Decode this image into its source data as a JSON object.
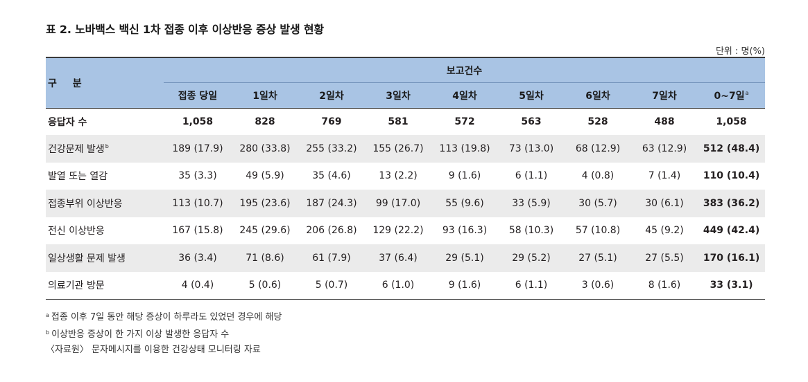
{
  "title": "표 2. 노바백스 백신 1차 접종 이후 이상반응 증상 발생 현황",
  "unit": "단위 : 명(%)",
  "header": {
    "corner": "구 분",
    "group": "보고건수",
    "columns": [
      "접종 당일",
      "1일차",
      "2일차",
      "3일차",
      "4일차",
      "5일차",
      "6일차",
      "7일차",
      "0~7일"
    ],
    "last_column_sup": "a"
  },
  "rows": [
    {
      "label": "응답자 수",
      "sup": "",
      "cells": [
        "1,058",
        "828",
        "769",
        "581",
        "572",
        "563",
        "528",
        "488",
        "1,058"
      ]
    },
    {
      "label": "건강문제 발생",
      "sup": "b",
      "cells": [
        "189 (17.9)",
        "280 (33.8)",
        "255 (33.2)",
        "155 (26.7)",
        "113 (19.8)",
        "73 (13.0)",
        "68 (12.9)",
        "63 (12.9)",
        "512 (48.4)"
      ]
    },
    {
      "label": "발열 또는 열감",
      "sup": "",
      "cells": [
        "35 (3.3)",
        "49 (5.9)",
        "35 (4.6)",
        "13 (2.2)",
        "9 (1.6)",
        "6 (1.1)",
        "4 (0.8)",
        "7 (1.4)",
        "110 (10.4)"
      ]
    },
    {
      "label": "접종부위 이상반응",
      "sup": "",
      "cells": [
        "113 (10.7)",
        "195 (23.6)",
        "187 (24.3)",
        "99 (17.0)",
        "55 (9.6)",
        "33 (5.9)",
        "30 (5.7)",
        "30 (6.1)",
        "383 (36.2)"
      ]
    },
    {
      "label": "전신 이상반응",
      "sup": "",
      "cells": [
        "167 (15.8)",
        "245 (29.6)",
        "206 (26.8)",
        "129 (22.2)",
        "93 (16.3)",
        "58 (10.3)",
        "57 (10.8)",
        "45 (9.2)",
        "449 (42.4)"
      ]
    },
    {
      "label": "일상생활 문제 발생",
      "sup": "",
      "cells": [
        "36 (3.4)",
        "71 (8.6)",
        "61 (7.9)",
        "37 (6.4)",
        "29 (5.1)",
        "29 (5.2)",
        "27 (5.1)",
        "27 (5.5)",
        "170 (16.1)"
      ]
    },
    {
      "label": "의료기관 방문",
      "sup": "",
      "cells": [
        "4 (0.4)",
        "5 (0.6)",
        "5 (0.7)",
        "6 (1.0)",
        "9 (1.6)",
        "6 (1.1)",
        "3 (0.6)",
        "8 (1.6)",
        "33 (3.1)"
      ]
    }
  ],
  "notes": [
    {
      "sup": "a",
      "text": "접종 이후 7일 동안 해당 증상이 하루라도 있었던 경우에 해당"
    },
    {
      "sup": "b",
      "text": "이상반응 증상이 한 가지 이상 발생한 응답자 수"
    },
    {
      "sup": "",
      "text": "〈자료원〉 문자메시지를 이용한 건강상태 모니터링 자료"
    }
  ],
  "colors": {
    "header_bg": "#a9c4e4",
    "shade_bg": "#ebebeb",
    "rule": "#3a3a3a"
  }
}
